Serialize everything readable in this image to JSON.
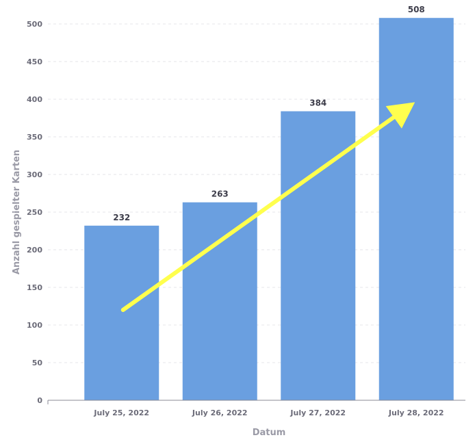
{
  "chart_data": {
    "type": "bar",
    "categories": [
      "July 25, 2022",
      "July 26, 2022",
      "July 27, 2022",
      "July 28, 2022"
    ],
    "values": [
      232,
      263,
      384,
      508
    ],
    "data_labels": [
      "232",
      "263",
      "384",
      "508"
    ],
    "title": "",
    "xlabel": "Datum",
    "ylabel": "Anzahl gespielter Karten",
    "ylim": [
      0,
      500
    ],
    "yticks": [
      0,
      50,
      100,
      150,
      200,
      250,
      300,
      350,
      400,
      450,
      500
    ],
    "grid": true,
    "bar_color": "#6a9fe0",
    "trend_arrow": {
      "color": "#ffff4d",
      "from_value": 120,
      "to_value": 396
    }
  }
}
